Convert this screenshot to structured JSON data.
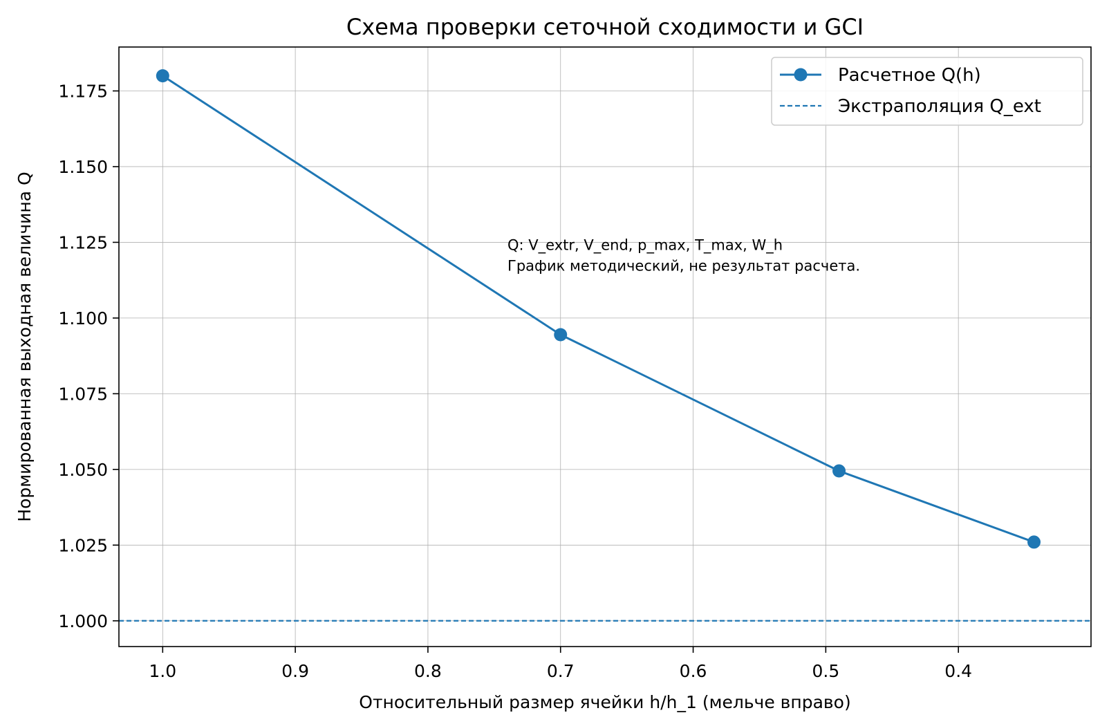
{
  "chart_data": {
    "type": "line",
    "title": "Схема проверки сеточной сходимости и GCI",
    "xlabel": "Относительный размер ячейки h/h_1 (мельче вправо)",
    "ylabel": "Нормированная выходная величина Q",
    "x_inverted": true,
    "xlim": [
      1.033,
      0.3
    ],
    "ylim": [
      0.9915,
      1.1895
    ],
    "x_ticks": [
      1.0,
      0.9,
      0.8,
      0.7,
      0.6,
      0.5,
      0.4
    ],
    "x_tick_labels": [
      "1.0",
      "0.9",
      "0.8",
      "0.7",
      "0.6",
      "0.5",
      "0.4"
    ],
    "y_ticks": [
      1.0,
      1.025,
      1.05,
      1.075,
      1.1,
      1.125,
      1.15,
      1.175
    ],
    "y_tick_labels": [
      "1.000",
      "1.025",
      "1.050",
      "1.075",
      "1.100",
      "1.125",
      "1.150",
      "1.175"
    ],
    "grid": true,
    "legend_position": "top-right",
    "series": [
      {
        "name": "Расчетное Q(h)",
        "style": "solid-line-with-circle-markers",
        "color": "#1f77b4",
        "x": [
          1.0,
          0.7,
          0.49,
          0.343
        ],
        "y": [
          1.18,
          1.0945,
          1.0495,
          1.026
        ]
      },
      {
        "name": "Экстраполяция Q_ext",
        "style": "dashed-horizontal-line",
        "color": "#1f77b4",
        "y": 1.0
      }
    ],
    "annotations": [
      {
        "lines": [
          "Q: V_extr, V_end, p_max, T_max, W_h",
          "График методический, не результат расчета."
        ],
        "x": 0.74,
        "y": 1.1225
      }
    ]
  }
}
